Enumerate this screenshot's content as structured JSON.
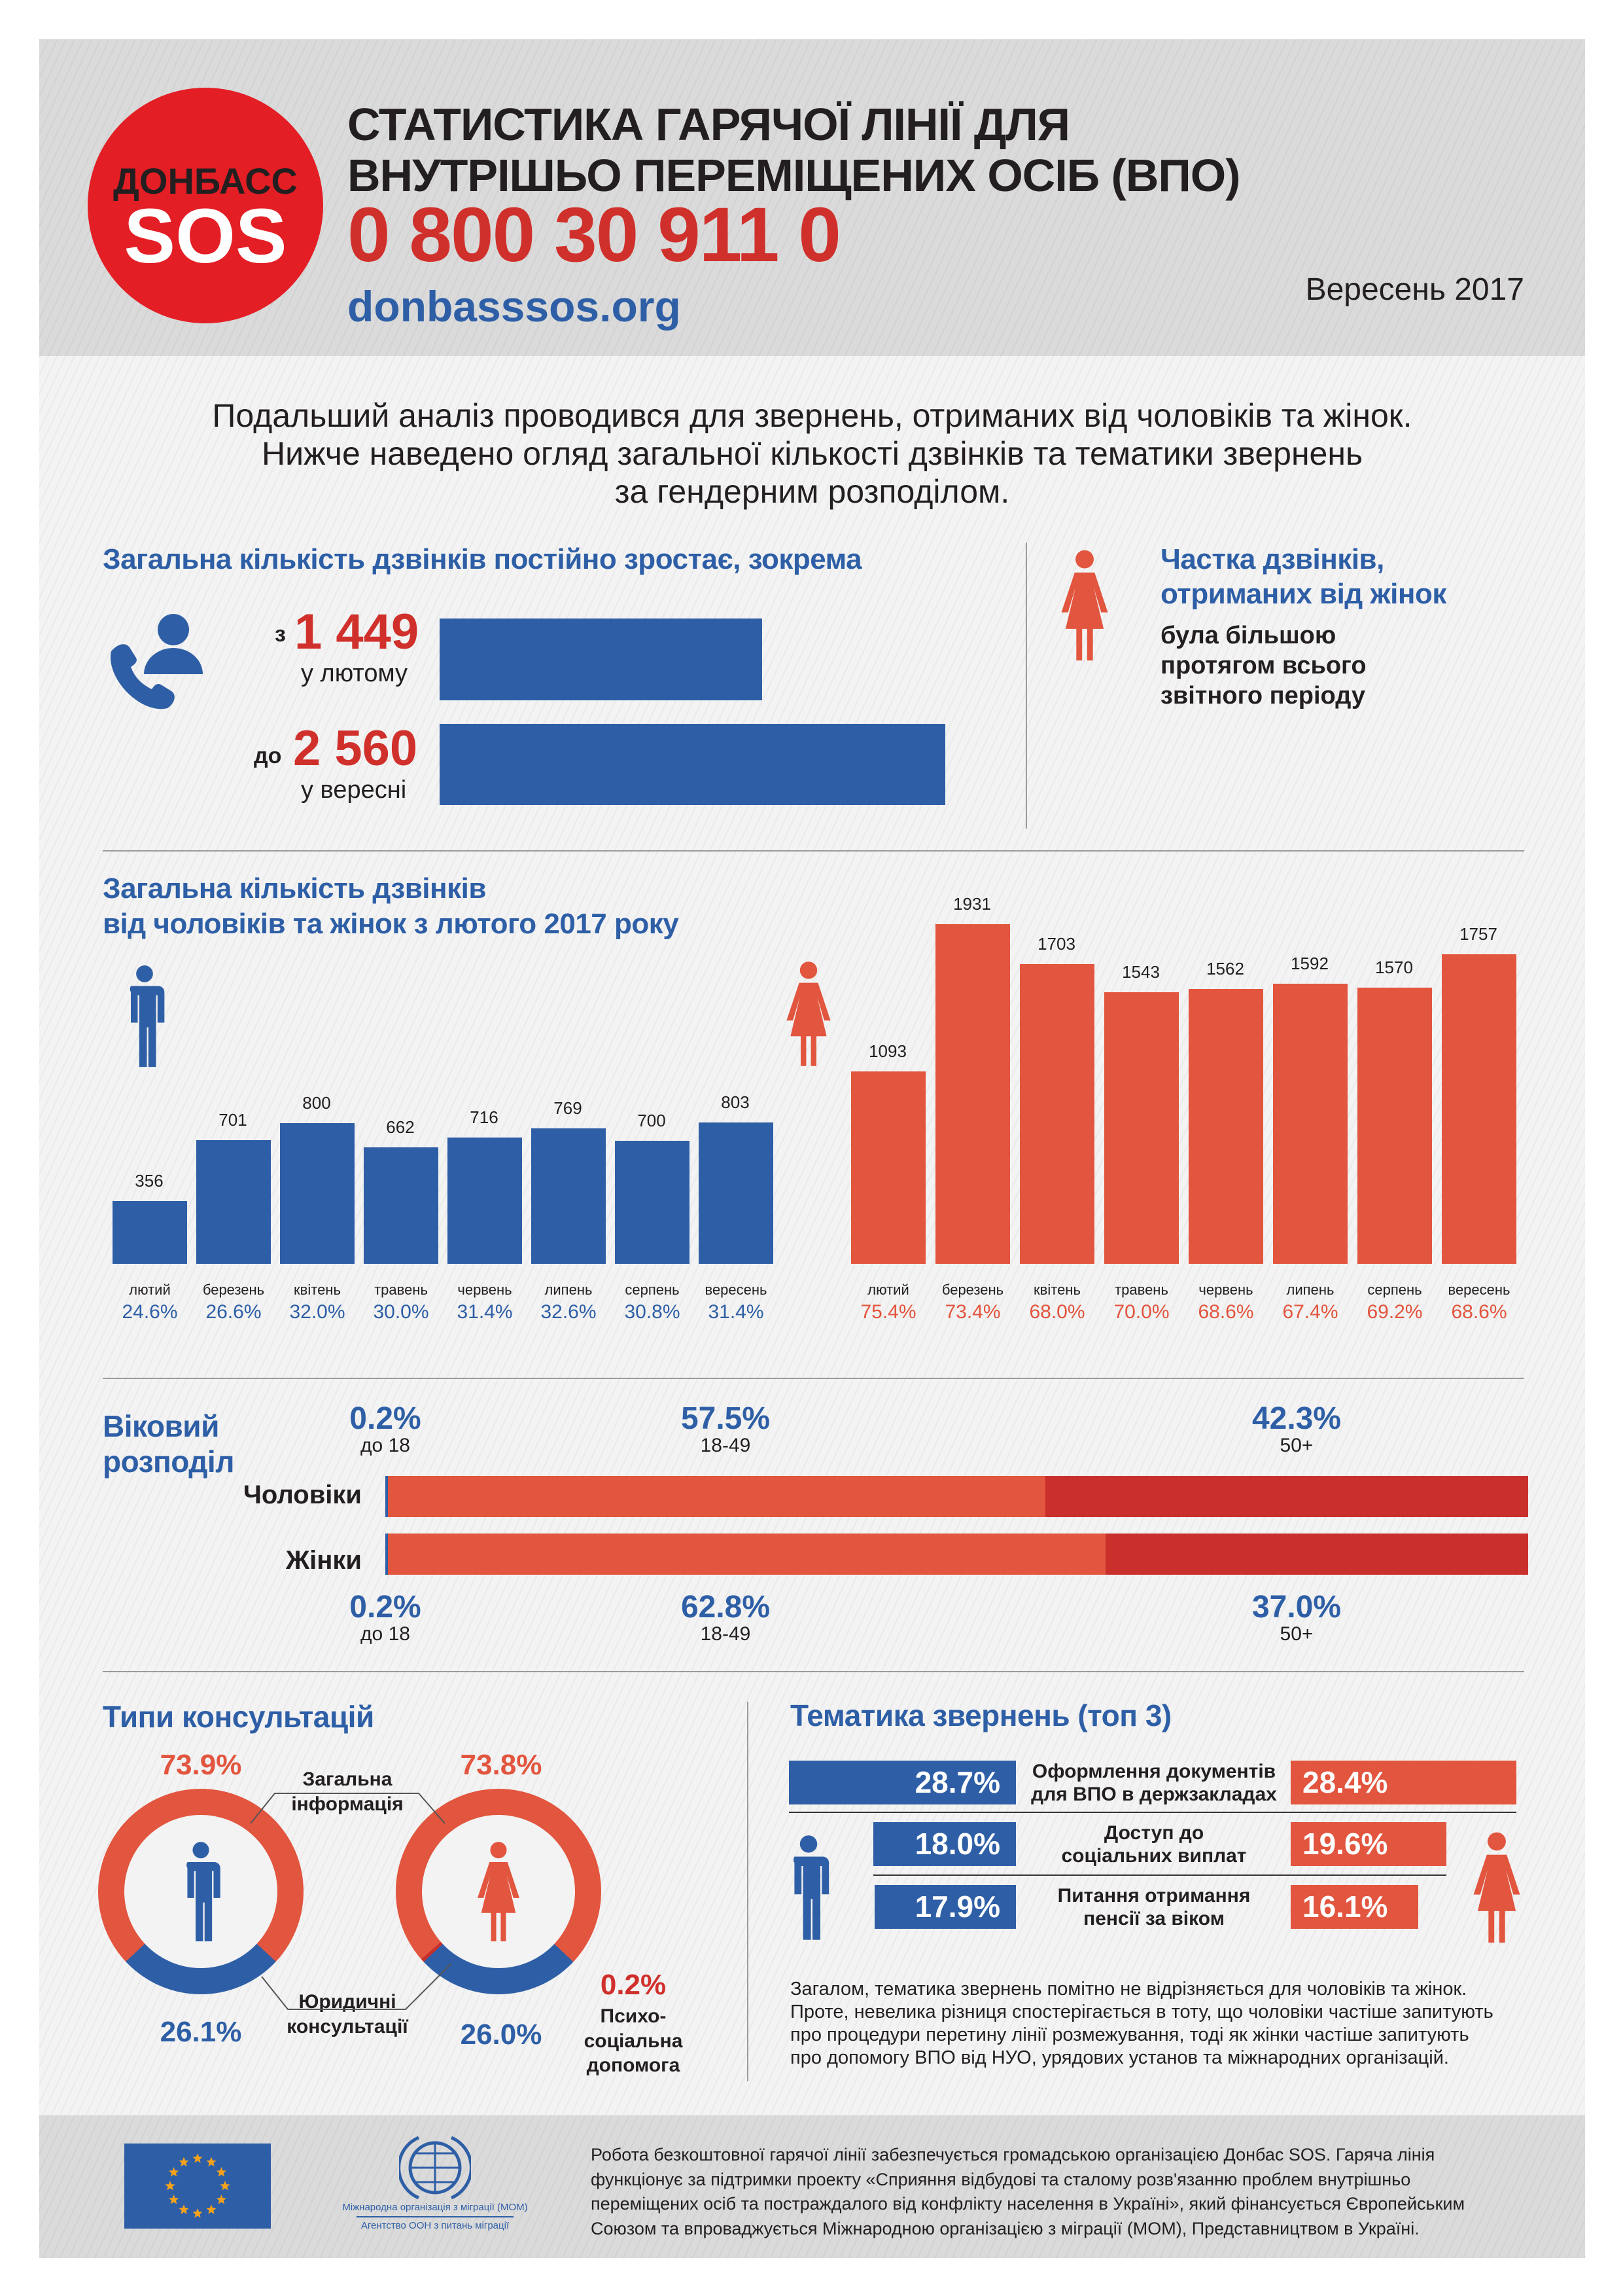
{
  "header": {
    "logo_top": "ДОНБАСС",
    "logo_bottom": "SOS",
    "title_line1": "СТАТИСТИКА ГАРЯЧОЇ ЛІНІЇ ДЛЯ",
    "title_line2": "ВНУТРІШЬО ПЕРЕМІЩЕНИХ ОСІБ (ВПО)",
    "phone": "0 800 30 911 0",
    "url": "donbasssos.org",
    "date": "Вересень 2017"
  },
  "intro": [
    "Подальший аналіз проводився для звернень, отриманих від чоловіків та жінок.",
    "Нижче наведено огляд загальної кількості дзвінків та тематики звернень",
    "за гендерним розподілом."
  ],
  "growth": {
    "title": "Загальна кількість дзвінків постійно зростає, зокрема",
    "from_prefix": "з",
    "from_value": "1 449",
    "from_label": "у лютому",
    "to_prefix": "до",
    "to_value": "2 560",
    "to_label": "у вересні"
  },
  "women_share": {
    "title_line1": "Частка дзвінків,",
    "title_line2": "отриманих від жінок",
    "text": [
      "була більшою",
      "протягом всього",
      "звітного періоду"
    ]
  },
  "monthly": {
    "title_line1": "Загальна кількість дзвінків",
    "title_line2": "від чоловіків та жінок з лютого 2017 року"
  },
  "age": {
    "title_line1": "Віковий",
    "title_line2": "розподіл",
    "men_label": "Чоловіки",
    "women_label": "Жінки",
    "men": [
      {
        "pct": "0.2%",
        "label": "до 18"
      },
      {
        "pct": "57.5%",
        "label": "18-49"
      },
      {
        "pct": "42.3%",
        "label": "50+"
      }
    ],
    "women": [
      {
        "pct": "0.2%",
        "label": "до 18"
      },
      {
        "pct": "62.8%",
        "label": "18-49"
      },
      {
        "pct": "37.0%",
        "label": "50+"
      }
    ]
  },
  "consult": {
    "title": "Типи консультацій",
    "men_general": "73.9%",
    "men_legal": "26.1%",
    "women_general": "73.8%",
    "women_legal": "26.0%",
    "women_psycho": "0.2%",
    "general_label": [
      "Загальна",
      "інформація"
    ],
    "legal_label": [
      "Юридичні",
      "консультації"
    ],
    "psycho_label": [
      "Психо-",
      "соціальна",
      "допомога"
    ]
  },
  "topics": {
    "title": "Тематика звернень (топ 3)",
    "rows": [
      {
        "men": "28.7%",
        "women": "28.4%",
        "label": [
          "Оформлення документів",
          "для ВПО в держзакладах"
        ]
      },
      {
        "men": "18.0%",
        "women": "19.6%",
        "label": [
          "Доступ до",
          "соціальних виплат"
        ]
      },
      {
        "men": "17.9%",
        "women": "16.1%",
        "label": [
          "Питання отримання",
          "пенсії за віком"
        ]
      }
    ],
    "paragraph": [
      "Загалом, тематика звернень помітно не відрізняється для чоловіків та жінок.",
      "Проте, невелика різниця спостерігається в тоту, що чоловіки частіше запитують",
      "про процедури перетину лінії розмежування, тоді як жінки частіше запитують",
      "про допомогу ВПО від НУО, урядових установ та  міжнародних організацій."
    ]
  },
  "footer": {
    "iom_line1": "Міжнародна організація з міграції (МОМ)",
    "iom_line2": "Агентство ООН з питань міграції",
    "text": [
      "Робота безкоштовної гарячої лінії забезпечується громадською організацією Донбас SOS. Гаряча лінія",
      "функціонує за підтримки проекту «Сприяння відбудові та сталому розв'язанню проблем внутрішньо",
      "переміщених осіб та постраждалого від конфлікту населення в Україні», який фінансується Європейським",
      "Союзом та впроваджується Міжнародною організацією з міграції (МОМ), Представництвом в Україні."
    ]
  },
  "colors": {
    "blue": "#2e5fa6",
    "red": "#e2553e",
    "dark_red": "#c9302c",
    "logo_red": "#e31e25"
  },
  "chart_data": [
    {
      "type": "bar",
      "categories": [
        "лютий",
        "березень",
        "квітень",
        "травень",
        "червень",
        "липень",
        "серпень",
        "вересень"
      ],
      "series": [
        {
          "name": "чоловіки",
          "values": [
            356,
            701,
            800,
            662,
            716,
            769,
            700,
            803
          ],
          "pct": [
            "24.6%",
            "26.6%",
            "32.0%",
            "30.0%",
            "31.4%",
            "32.6%",
            "30.8%",
            "31.4%"
          ]
        },
        {
          "name": "жінки",
          "values": [
            1093,
            1931,
            1703,
            1543,
            1562,
            1592,
            1570,
            1757
          ],
          "pct": [
            "75.4%",
            "73.4%",
            "68.0%",
            "70.0%",
            "68.6%",
            "67.4%",
            "69.2%",
            "68.6%"
          ]
        }
      ]
    },
    {
      "type": "bar",
      "categories": [
        "у лютому",
        "у вересні"
      ],
      "values": [
        1449,
        2560
      ]
    },
    {
      "type": "bar",
      "stacked": true,
      "categories": [
        "Чоловіки",
        "Жінки"
      ],
      "series": [
        {
          "name": "до 18",
          "values": [
            0.2,
            0.2
          ]
        },
        {
          "name": "18-49",
          "values": [
            57.5,
            62.8
          ]
        },
        {
          "name": "50+",
          "values": [
            42.3,
            37.0
          ]
        }
      ]
    },
    {
      "type": "pie",
      "donut": true,
      "series": [
        {
          "name": "чоловіки",
          "values": {
            "Загальна інформація": 73.9,
            "Юридичні консультації": 26.1
          }
        },
        {
          "name": "жінки",
          "values": {
            "Загальна інформація": 73.8,
            "Юридичні консультації": 26.0,
            "Психо-соціальна допомога": 0.2
          }
        }
      ]
    }
  ]
}
